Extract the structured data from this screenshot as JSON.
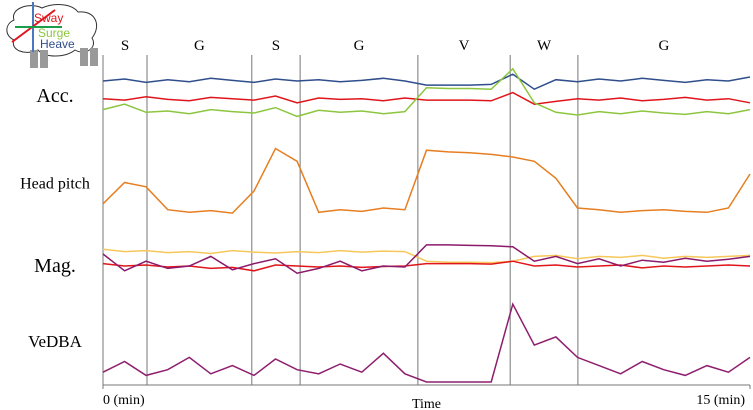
{
  "chart_data": {
    "type": "line",
    "xlabel": "Time",
    "xlim": [
      0,
      15
    ],
    "xticks": [
      {
        "value": 0,
        "label": "0 (min)"
      },
      {
        "value": 15,
        "label": "15 (min)"
      }
    ],
    "x": [
      0,
      0.5,
      1,
      1.5,
      2,
      2.5,
      3,
      3.5,
      4,
      4.5,
      5,
      5.5,
      6,
      6.5,
      7,
      7.5,
      8,
      8.5,
      9,
      9.5,
      10,
      10.5,
      11,
      11.5,
      12,
      12.5,
      13,
      13.5,
      14,
      14.5,
      15
    ],
    "segments": [
      {
        "label": "S",
        "start": 0,
        "end": 1.02
      },
      {
        "label": "G",
        "start": 1.02,
        "end": 3.45
      },
      {
        "label": "S",
        "start": 3.45,
        "end": 4.57
      },
      {
        "label": "G",
        "start": 4.57,
        "end": 7.3
      },
      {
        "label": "V",
        "start": 7.3,
        "end": 9.44
      },
      {
        "label": "W",
        "start": 9.44,
        "end": 11.01
      },
      {
        "label": "G",
        "start": 11.01,
        "end": 15
      }
    ],
    "panels": [
      {
        "label": "Acc.",
        "ylim": [
          0,
          100
        ],
        "series": [
          {
            "name": "Heave",
            "color": "#2f4e8c",
            "values": [
              72,
              75,
              70,
              74,
              71,
              76,
              73,
              70,
              75,
              72,
              74,
              71,
              73,
              76,
              72,
              66,
              66,
              66,
              67,
              82,
              60,
              74,
              71,
              75,
              72,
              76,
              73,
              70,
              74,
              72,
              78
            ]
          },
          {
            "name": "Sway",
            "color": "#e0151b",
            "values": [
              46,
              44,
              49,
              45,
              43,
              48,
              46,
              44,
              50,
              40,
              47,
              45,
              46,
              43,
              47,
              44,
              44,
              44,
              43,
              55,
              38,
              42,
              46,
              44,
              47,
              43,
              45,
              48,
              44,
              46,
              40
            ]
          },
          {
            "name": "Surge",
            "color": "#8cc63f",
            "values": [
              30,
              38,
              26,
              28,
              24,
              30,
              27,
              25,
              33,
              20,
              29,
              26,
              28,
              24,
              27,
              62,
              61,
              61,
              60,
              90,
              40,
              26,
              22,
              27,
              24,
              28,
              25,
              23,
              27,
              24,
              30
            ]
          }
        ]
      },
      {
        "label": "Head pitch",
        "ylim": [
          0,
          100
        ],
        "series": [
          {
            "color": "#e67e22",
            "values": [
              25,
              50,
              45,
              18,
              15,
              17,
              14,
              40,
              90,
              75,
              15,
              18,
              16,
              20,
              18,
              88,
              86,
              85,
              83,
              80,
              75,
              55,
              20,
              18,
              15,
              17,
              18,
              16,
              15,
              20,
              60
            ]
          }
        ]
      },
      {
        "label": "Mag.",
        "ylim": [
          0,
          100
        ],
        "series": [
          {
            "color": "#f6c75b",
            "values": [
              85,
              80,
              82,
              78,
              80,
              76,
              82,
              79,
              77,
              80,
              78,
              82,
              79,
              81,
              80,
              60,
              58,
              58,
              57,
              60,
              70,
              72,
              65,
              70,
              68,
              72,
              66,
              70,
              68,
              70,
              72
            ]
          },
          {
            "color": "#e0151b",
            "values": [
              55,
              50,
              52,
              48,
              50,
              45,
              47,
              40,
              52,
              50,
              48,
              50,
              47,
              49,
              50,
              55,
              55,
              55,
              54,
              60,
              50,
              52,
              48,
              50,
              52,
              46,
              50,
              48,
              50,
              52,
              50
            ]
          },
          {
            "color": "#8b1a6b",
            "values": [
              75,
              40,
              60,
              45,
              50,
              70,
              42,
              55,
              65,
              35,
              45,
              60,
              40,
              50,
              48,
              94,
              94,
              93,
              92,
              90,
              60,
              70,
              55,
              65,
              50,
              62,
              58,
              66,
              60,
              64,
              70
            ]
          }
        ]
      },
      {
        "label": "VeDBA",
        "ylim": [
          0,
          100
        ],
        "series": [
          {
            "color": "#8e1e6e",
            "values": [
              12,
              25,
              8,
              15,
              30,
              10,
              20,
              8,
              28,
              15,
              10,
              22,
              12,
              35,
              10,
              0,
              0,
              0,
              0,
              95,
              45,
              55,
              30,
              20,
              10,
              25,
              15,
              8,
              20,
              12,
              30
            ]
          }
        ]
      }
    ]
  }
}
